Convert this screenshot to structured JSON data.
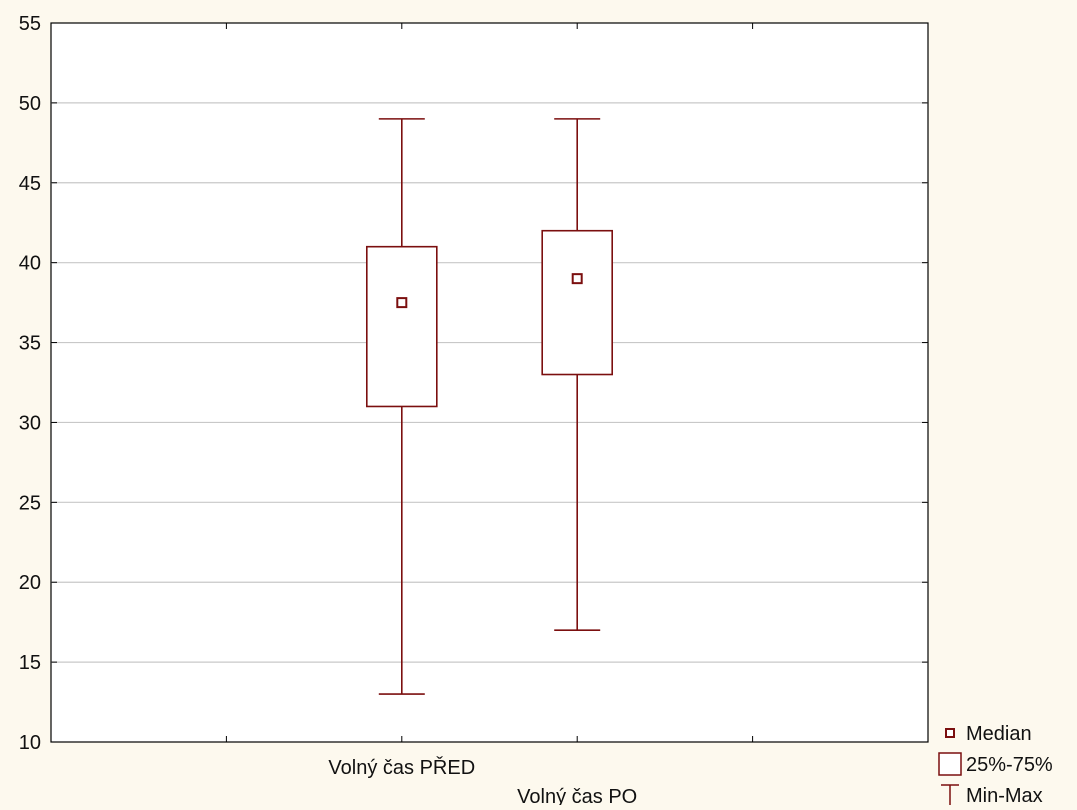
{
  "chart_data": {
    "type": "box",
    "title": "",
    "xlabel": "",
    "ylabel": "",
    "ylim": [
      10,
      55
    ],
    "yticks": [
      10,
      15,
      20,
      25,
      30,
      35,
      40,
      45,
      50,
      55
    ],
    "grid": true,
    "categories": [
      "Volný čas PŘED",
      "Volný čas  PO"
    ],
    "boxes": [
      {
        "category": "Volný čas PŘED",
        "min": 13,
        "q1": 31,
        "median": 37.5,
        "q3": 41,
        "max": 49
      },
      {
        "category": "Volný čas  PO",
        "min": 17,
        "q1": 33,
        "median": 39,
        "q3": 42,
        "max": 49
      }
    ],
    "legend": {
      "placement": "bottom-right",
      "items": [
        {
          "label": "Median",
          "symbol": "small-square"
        },
        {
          "label": "25%-75%",
          "symbol": "box"
        },
        {
          "label": "Min-Max",
          "symbol": "whisker"
        }
      ]
    },
    "colors": {
      "series": "#7b0f0f",
      "grid": "#c8c8c8",
      "plot_bg": "#ffffff",
      "page_bg": "#fdf9ee"
    }
  }
}
